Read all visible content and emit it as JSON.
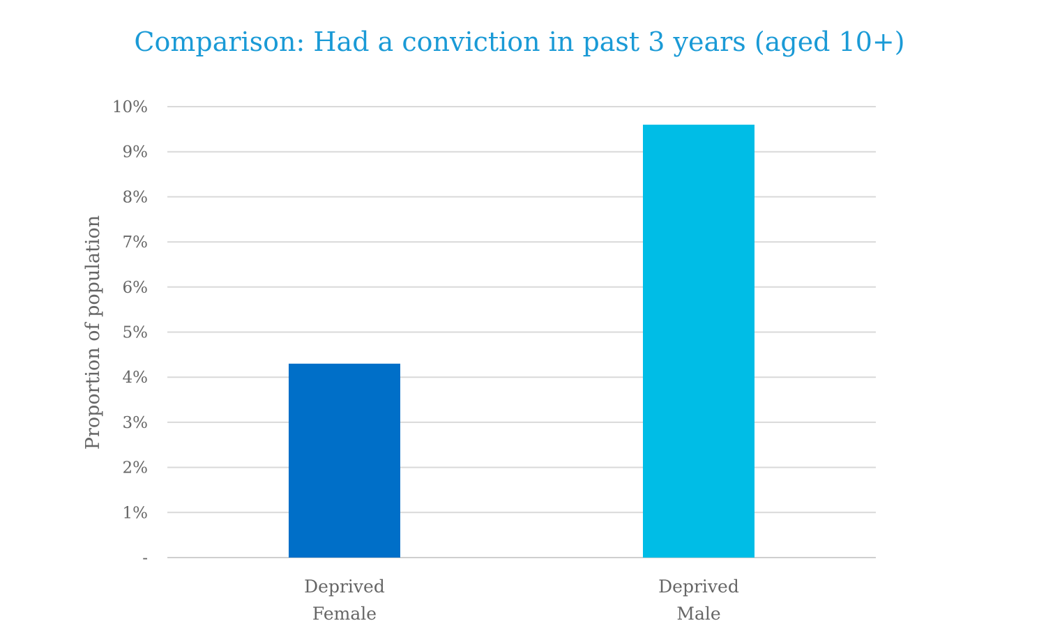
{
  "chart_data": {
    "type": "bar",
    "title": "Comparison: Had a conviction in past 3 years (aged 10+)",
    "xlabel": "",
    "ylabel": "Proportion of population",
    "categories": [
      [
        "Deprived",
        "Female"
      ],
      [
        "Deprived",
        "Male"
      ]
    ],
    "values": [
      4.3,
      9.6
    ],
    "value_unit": "%",
    "ylim": [
      0,
      10
    ],
    "yticks": [
      0,
      1,
      2,
      3,
      4,
      5,
      6,
      7,
      8,
      9,
      10
    ],
    "ytick_labels": [
      "-",
      "1%",
      "2%",
      "3%",
      "4%",
      "5%",
      "6%",
      "7%",
      "8%",
      "9%",
      "10%"
    ],
    "bar_colors": [
      "#006fc8",
      "#00bde6"
    ],
    "grid": true,
    "legend": "none"
  }
}
